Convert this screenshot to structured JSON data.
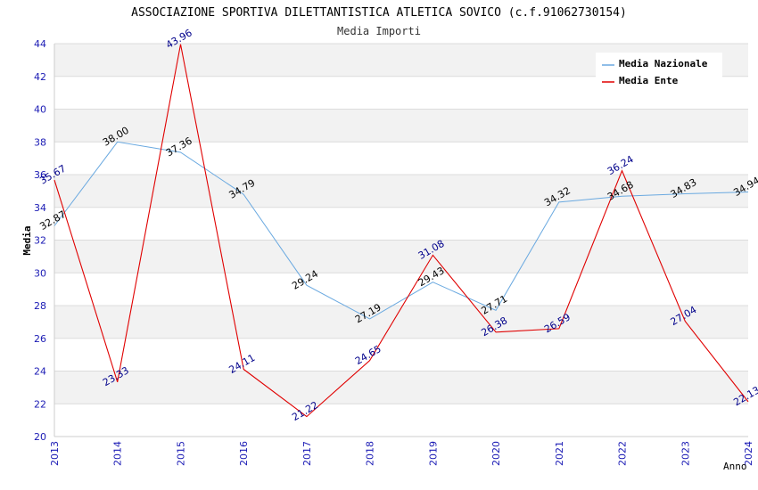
{
  "chart_data": {
    "type": "line",
    "title": "ASSOCIAZIONE SPORTIVA DILETTANTISTICA ATLETICA SOVICO (c.f.91062730154)",
    "subtitle": "Media Importi",
    "xlabel": "Anno",
    "ylabel": "Media",
    "ylim": [
      20,
      44
    ],
    "yticks": [
      "20",
      "22",
      "24",
      "26",
      "28",
      "30",
      "32",
      "34",
      "36",
      "38",
      "40",
      "42",
      "44"
    ],
    "categories": [
      "2013",
      "2014",
      "2015",
      "2016",
      "2017",
      "2018",
      "2019",
      "2020",
      "2021",
      "2022",
      "2023",
      "2024"
    ],
    "legend_position": "top-right",
    "grid": true,
    "series": [
      {
        "name": "Media Nazionale",
        "color": "#6aa9e0",
        "label_color": "#000000",
        "values": [
          32.87,
          38.0,
          37.36,
          34.79,
          29.24,
          27.19,
          29.43,
          27.71,
          34.32,
          34.68,
          34.83,
          34.94
        ],
        "labels": [
          "32.87",
          "38.00",
          "37.36",
          "34.79",
          "29.24",
          "27.19",
          "29.43",
          "27.71",
          "34.32",
          "34.68",
          "34.83",
          "34.94"
        ]
      },
      {
        "name": "Media Ente",
        "color": "#e00000",
        "label_color": "#00008b",
        "values": [
          35.67,
          23.33,
          43.96,
          24.11,
          21.22,
          24.65,
          31.08,
          26.38,
          26.59,
          36.24,
          27.04,
          22.13
        ],
        "labels": [
          "35.67",
          "23.33",
          "43.96",
          "24.11",
          "21.22",
          "24.65",
          "31.08",
          "26.38",
          "26.59",
          "36.24",
          "27.04",
          "22.13"
        ]
      }
    ]
  }
}
